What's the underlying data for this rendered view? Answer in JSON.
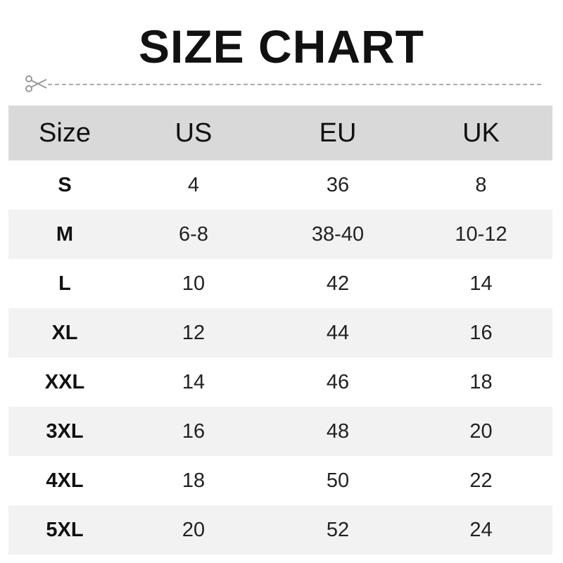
{
  "title": "SIZE CHART",
  "icons": {
    "cut": "scissors-icon"
  },
  "table": {
    "headers": [
      "Size",
      "US",
      "EU",
      "UK"
    ],
    "rows": [
      [
        "S",
        "4",
        "36",
        "8"
      ],
      [
        "M",
        "6-8",
        "38-40",
        "10-12"
      ],
      [
        "L",
        "10",
        "42",
        "14"
      ],
      [
        "XL",
        "12",
        "44",
        "16"
      ],
      [
        "XXL",
        "14",
        "46",
        "18"
      ],
      [
        "3XL",
        "16",
        "48",
        "20"
      ],
      [
        "4XL",
        "18",
        "50",
        "22"
      ],
      [
        "5XL",
        "20",
        "52",
        "24"
      ]
    ]
  },
  "colors": {
    "header_bg": "#d9d9d9",
    "alt_row_bg": "#f2f2f2",
    "cut_line": "#aaaaaa"
  }
}
